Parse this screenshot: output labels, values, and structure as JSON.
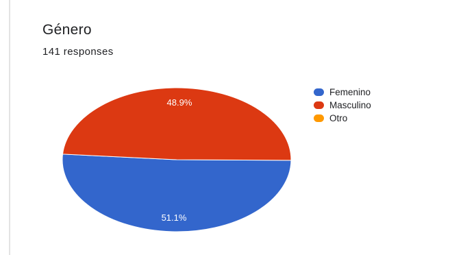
{
  "question": {
    "title": "Género",
    "responses": "141 responses"
  },
  "chart_data": {
    "type": "pie",
    "categories": [
      "Femenino",
      "Masculino",
      "Otro"
    ],
    "values": [
      51.1,
      48.9,
      0
    ],
    "value_labels": [
      "51.1%",
      "48.9%",
      ""
    ],
    "colors": [
      "#3366cc",
      "#dc3912",
      "#ff9900"
    ],
    "legend_position": "right"
  }
}
